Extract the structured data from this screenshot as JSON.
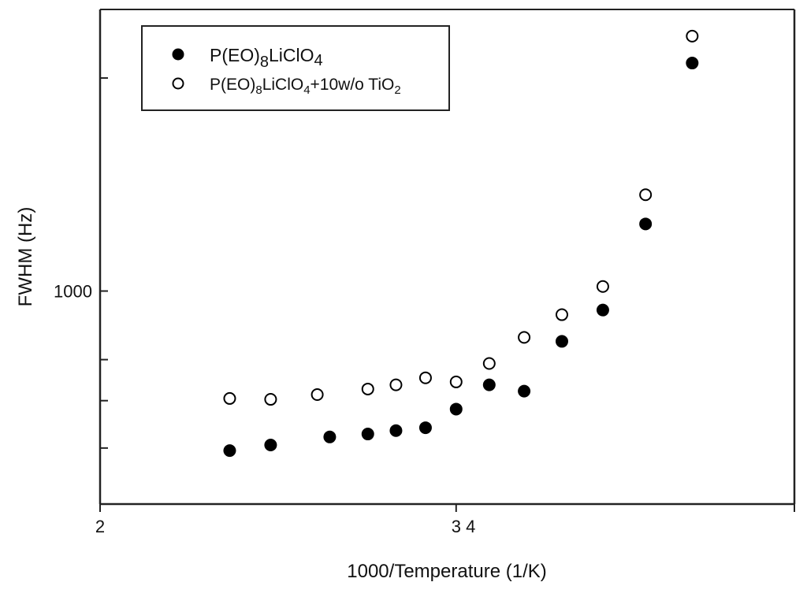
{
  "chart_data": {
    "type": "scatter",
    "title": "",
    "xlabel": "1000/Temperature (1/K)",
    "ylabel": "FWHM (Hz)",
    "xlim": [
      2,
      3.95
    ],
    "ylim": [
      500,
      2500
    ],
    "yscale": "log",
    "x_ticks": [
      {
        "value": 2,
        "label": "2"
      },
      {
        "value": 3,
        "label": "3 4"
      },
      {
        "value": 3.95,
        "label": ""
      }
    ],
    "y_ticks": [
      {
        "value": 600,
        "label": ""
      },
      {
        "value": 700,
        "label": ""
      },
      {
        "value": 800,
        "label": ""
      },
      {
        "value": 1000,
        "label": "1000"
      },
      {
        "value": 2000,
        "label": ""
      }
    ],
    "grid": false,
    "legend_position": "top-left",
    "series": [
      {
        "name": "P(EO)8LiClO4",
        "legend": {
          "base": "P(EO)",
          "sub1": "8",
          "mid": "LiClO",
          "sub2": "4",
          "tail": "",
          "sub3": ""
        },
        "marker": "filled-circle",
        "color": "#000000",
        "x": [
          2.364,
          2.479,
          2.645,
          2.752,
          2.831,
          2.914,
          3.0,
          3.093,
          3.191,
          3.297,
          3.412,
          3.532,
          3.663
        ],
        "y": [
          595,
          606,
          622,
          628,
          635,
          641,
          681,
          737,
          722,
          849,
          940,
          1244,
          2100
        ]
      },
      {
        "name": "P(EO)8LiClO4+10w/o TiO2",
        "legend": {
          "base": "P(EO)",
          "sub1": "8",
          "mid": "LiClO",
          "sub2": "4",
          "tail": "+10w/o TiO",
          "sub3": "2"
        },
        "marker": "open-circle",
        "color": "#000000",
        "x": [
          2.364,
          2.479,
          2.61,
          2.752,
          2.831,
          2.914,
          3.0,
          3.093,
          3.191,
          3.297,
          3.412,
          3.532,
          3.663
        ],
        "y": [
          705,
          703,
          714,
          727,
          737,
          754,
          744,
          790,
          860,
          926,
          1015,
          1368,
          2292
        ]
      }
    ]
  }
}
